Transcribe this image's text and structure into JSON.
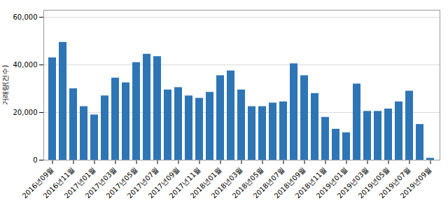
{
  "chart_data": {
    "type": "bar",
    "categories": [
      "2016년09월",
      null,
      "2016년11월",
      null,
      "2017년01월",
      null,
      "2017년03월",
      null,
      "2017년05월",
      null,
      "2017년07월",
      null,
      "2017년09월",
      null,
      "2017년11월",
      null,
      "2018년01월",
      null,
      "2018년03월",
      null,
      "2018년05월",
      null,
      "2018년07월",
      null,
      "2018년09월",
      null,
      "2018년11월",
      null,
      "2019년01월",
      null,
      "2019년03월",
      null,
      "2019년05월",
      null,
      "2019년07월",
      null,
      "2019년09월"
    ],
    "values": [
      43000,
      49500,
      30000,
      22500,
      19000,
      27000,
      34500,
      32500,
      41000,
      44500,
      43500,
      29500,
      30500,
      27000,
      26000,
      28500,
      35500,
      37500,
      29500,
      22500,
      22500,
      24000,
      24500,
      40500,
      35500,
      28000,
      18000,
      13000,
      11500,
      32000,
      20500,
      20500,
      21500,
      24500,
      29000,
      15000,
      800
    ],
    "color": "#2E75B6",
    "ylabel": "거래량(건수)",
    "ylim": [
      0,
      63000
    ],
    "yticks": [
      0,
      {
        "value": 20000,
        "label": "20,000"
      },
      {
        "value": 40000,
        "label": "40,000"
      },
      {
        "value": 60000,
        "label": "60,000"
      }
    ],
    "grid": true
  }
}
